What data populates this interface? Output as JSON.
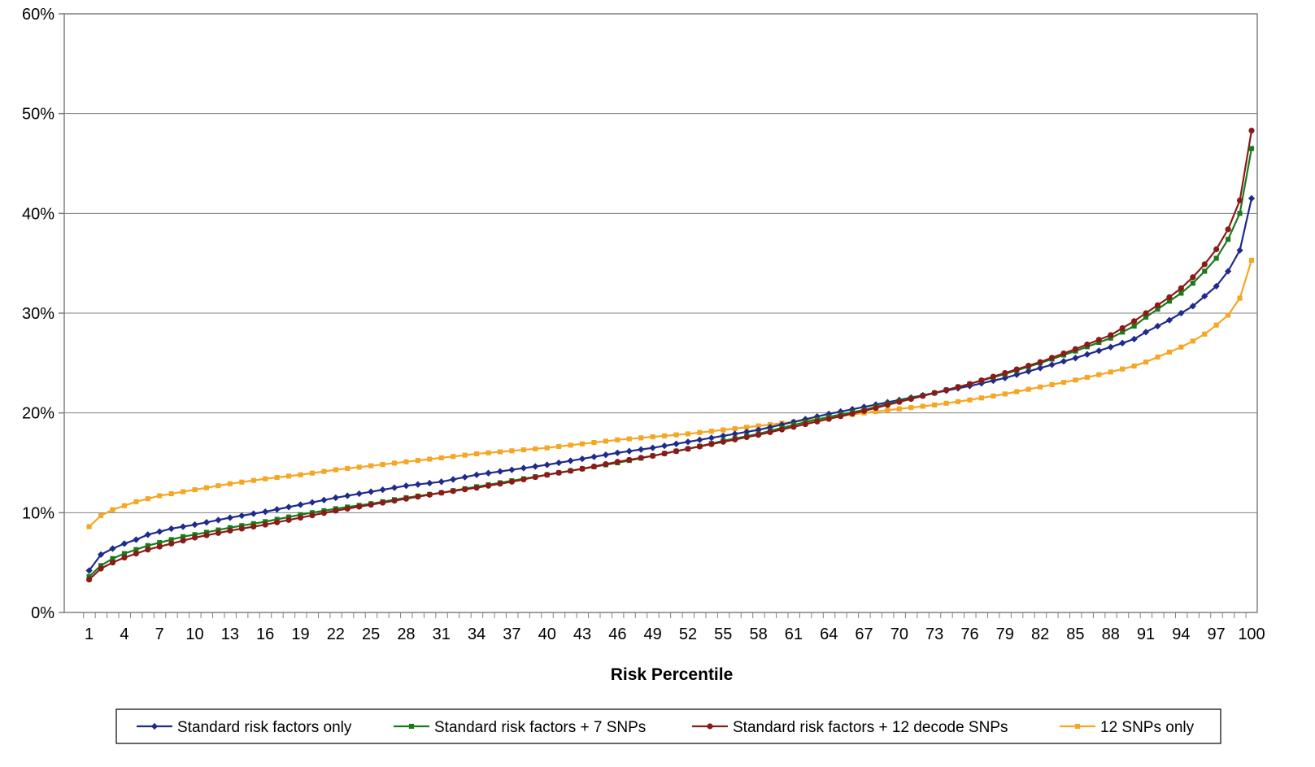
{
  "chart_data": {
    "type": "line",
    "title": "",
    "xlabel": "Risk Percentile",
    "ylabel": "",
    "x_tick_labels": [
      "1",
      "4",
      "7",
      "10",
      "13",
      "16",
      "19",
      "22",
      "25",
      "28",
      "31",
      "34",
      "37",
      "40",
      "43",
      "46",
      "49",
      "52",
      "55",
      "58",
      "61",
      "64",
      "67",
      "70",
      "73",
      "76",
      "79",
      "82",
      "85",
      "88",
      "91",
      "94",
      "97",
      "100"
    ],
    "y_tick_labels": [
      "0%",
      "10%",
      "20%",
      "30%",
      "40%",
      "50%",
      "60%"
    ],
    "xlim": [
      1,
      100
    ],
    "ylim": [
      0,
      60
    ],
    "grid": "horizontal",
    "legend_position": "bottom",
    "anchors_note_free": true,
    "series": [
      {
        "name": "Standard risk factors only",
        "color": "#1f2a8c",
        "marker": "diamond",
        "anchors": [
          [
            1,
            4.2
          ],
          [
            2,
            5.8
          ],
          [
            3,
            6.4
          ],
          [
            4,
            6.9
          ],
          [
            5,
            7.3
          ],
          [
            6,
            7.8
          ],
          [
            7,
            8.1
          ],
          [
            8,
            8.4
          ],
          [
            9,
            8.6
          ],
          [
            10,
            8.8
          ],
          [
            13,
            9.5
          ],
          [
            16,
            10.1
          ],
          [
            19,
            10.8
          ],
          [
            22,
            11.5
          ],
          [
            25,
            12.1
          ],
          [
            28,
            12.7
          ],
          [
            31,
            13.1
          ],
          [
            34,
            13.8
          ],
          [
            37,
            14.3
          ],
          [
            40,
            14.8
          ],
          [
            43,
            15.4
          ],
          [
            46,
            16.0
          ],
          [
            49,
            16.5
          ],
          [
            52,
            17.1
          ],
          [
            55,
            17.7
          ],
          [
            58,
            18.3
          ],
          [
            61,
            19.1
          ],
          [
            64,
            19.9
          ],
          [
            67,
            20.6
          ],
          [
            70,
            21.3
          ],
          [
            73,
            22.0
          ],
          [
            76,
            22.7
          ],
          [
            79,
            23.5
          ],
          [
            82,
            24.5
          ],
          [
            85,
            25.5
          ],
          [
            88,
            26.6
          ],
          [
            90,
            27.4
          ],
          [
            91,
            28.1
          ],
          [
            92,
            28.7
          ],
          [
            93,
            29.3
          ],
          [
            94,
            30.0
          ],
          [
            95,
            30.7
          ],
          [
            96,
            31.7
          ],
          [
            97,
            32.7
          ],
          [
            98,
            34.2
          ],
          [
            99,
            36.3
          ],
          [
            100,
            41.5
          ]
        ]
      },
      {
        "name": "Standard risk factors + 7 SNPs",
        "color": "#1a7a1a",
        "marker": "square",
        "anchors": [
          [
            1,
            3.6
          ],
          [
            2,
            4.7
          ],
          [
            3,
            5.4
          ],
          [
            4,
            5.9
          ],
          [
            5,
            6.3
          ],
          [
            6,
            6.7
          ],
          [
            7,
            7.0
          ],
          [
            8,
            7.3
          ],
          [
            9,
            7.6
          ],
          [
            10,
            7.8
          ],
          [
            13,
            8.5
          ],
          [
            16,
            9.1
          ],
          [
            19,
            9.8
          ],
          [
            22,
            10.4
          ],
          [
            25,
            10.9
          ],
          [
            28,
            11.5
          ],
          [
            31,
            12.0
          ],
          [
            34,
            12.6
          ],
          [
            37,
            13.2
          ],
          [
            40,
            13.8
          ],
          [
            43,
            14.4
          ],
          [
            46,
            15.0
          ],
          [
            49,
            15.7
          ],
          [
            52,
            16.4
          ],
          [
            55,
            17.2
          ],
          [
            58,
            17.9
          ],
          [
            61,
            18.8
          ],
          [
            64,
            19.6
          ],
          [
            67,
            20.3
          ],
          [
            70,
            21.2
          ],
          [
            73,
            22.0
          ],
          [
            76,
            22.9
          ],
          [
            79,
            23.9
          ],
          [
            82,
            25.0
          ],
          [
            85,
            26.2
          ],
          [
            88,
            27.5
          ],
          [
            90,
            28.7
          ],
          [
            91,
            29.6
          ],
          [
            92,
            30.4
          ],
          [
            93,
            31.2
          ],
          [
            94,
            32.0
          ],
          [
            95,
            33.0
          ],
          [
            96,
            34.2
          ],
          [
            97,
            35.5
          ],
          [
            98,
            37.4
          ],
          [
            99,
            40.0
          ],
          [
            100,
            46.5
          ]
        ]
      },
      {
        "name": "Standard risk factors + 12 decode SNPs",
        "color": "#8b1a1a",
        "marker": "circle",
        "anchors": [
          [
            1,
            3.3
          ],
          [
            2,
            4.4
          ],
          [
            3,
            5.0
          ],
          [
            4,
            5.5
          ],
          [
            5,
            5.9
          ],
          [
            6,
            6.3
          ],
          [
            7,
            6.6
          ],
          [
            8,
            6.9
          ],
          [
            9,
            7.2
          ],
          [
            10,
            7.5
          ],
          [
            13,
            8.2
          ],
          [
            16,
            8.8
          ],
          [
            19,
            9.5
          ],
          [
            22,
            10.2
          ],
          [
            25,
            10.8
          ],
          [
            28,
            11.4
          ],
          [
            31,
            12.0
          ],
          [
            34,
            12.5
          ],
          [
            37,
            13.1
          ],
          [
            40,
            13.8
          ],
          [
            43,
            14.4
          ],
          [
            46,
            15.1
          ],
          [
            49,
            15.7
          ],
          [
            52,
            16.4
          ],
          [
            55,
            17.1
          ],
          [
            58,
            17.8
          ],
          [
            61,
            18.6
          ],
          [
            64,
            19.4
          ],
          [
            67,
            20.2
          ],
          [
            70,
            21.1
          ],
          [
            73,
            22.0
          ],
          [
            76,
            22.9
          ],
          [
            79,
            24.0
          ],
          [
            82,
            25.1
          ],
          [
            85,
            26.4
          ],
          [
            88,
            27.8
          ],
          [
            90,
            29.2
          ],
          [
            91,
            30.0
          ],
          [
            92,
            30.8
          ],
          [
            93,
            31.6
          ],
          [
            94,
            32.5
          ],
          [
            95,
            33.6
          ],
          [
            96,
            34.9
          ],
          [
            97,
            36.4
          ],
          [
            98,
            38.4
          ],
          [
            99,
            41.3
          ],
          [
            100,
            48.3
          ]
        ]
      },
      {
        "name": "12 SNPs only",
        "color": "#f5a623",
        "marker": "square",
        "anchors": [
          [
            1,
            8.6
          ],
          [
            2,
            9.7
          ],
          [
            3,
            10.3
          ],
          [
            4,
            10.7
          ],
          [
            5,
            11.1
          ],
          [
            6,
            11.4
          ],
          [
            7,
            11.7
          ],
          [
            8,
            11.9
          ],
          [
            9,
            12.1
          ],
          [
            10,
            12.3
          ],
          [
            13,
            12.9
          ],
          [
            16,
            13.4
          ],
          [
            19,
            13.8
          ],
          [
            22,
            14.3
          ],
          [
            25,
            14.7
          ],
          [
            28,
            15.1
          ],
          [
            31,
            15.5
          ],
          [
            34,
            15.9
          ],
          [
            37,
            16.2
          ],
          [
            40,
            16.5
          ],
          [
            43,
            16.9
          ],
          [
            46,
            17.3
          ],
          [
            49,
            17.6
          ],
          [
            52,
            17.9
          ],
          [
            55,
            18.3
          ],
          [
            58,
            18.7
          ],
          [
            61,
            19.1
          ],
          [
            64,
            19.5
          ],
          [
            67,
            20.0
          ],
          [
            70,
            20.4
          ],
          [
            73,
            20.8
          ],
          [
            76,
            21.3
          ],
          [
            79,
            21.9
          ],
          [
            82,
            22.6
          ],
          [
            85,
            23.3
          ],
          [
            88,
            24.1
          ],
          [
            90,
            24.7
          ],
          [
            91,
            25.1
          ],
          [
            92,
            25.6
          ],
          [
            93,
            26.1
          ],
          [
            94,
            26.6
          ],
          [
            95,
            27.2
          ],
          [
            96,
            27.9
          ],
          [
            97,
            28.8
          ],
          [
            98,
            29.8
          ],
          [
            99,
            31.5
          ],
          [
            100,
            35.3
          ]
        ]
      }
    ]
  }
}
